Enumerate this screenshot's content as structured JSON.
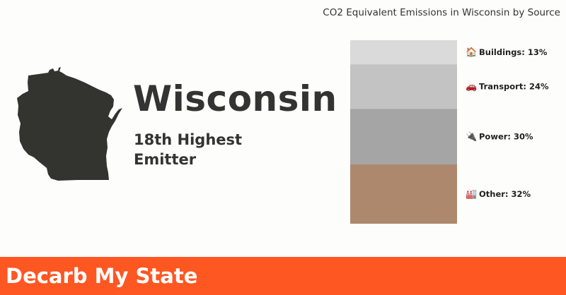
{
  "chart_title": "CO2 Equivalent Emissions in Wisconsin by Source",
  "state": {
    "name": "Wisconsin",
    "rank_line1": "18th Highest",
    "rank_line2": "Emitter",
    "shape_color": "#333330"
  },
  "footer": {
    "label": "Decarb My State",
    "color": "#ff5722"
  },
  "chart_data": {
    "type": "bar",
    "stacked": true,
    "title": "CO2 Equivalent Emissions in Wisconsin by Source",
    "series": [
      {
        "name": "Buildings",
        "icon": "house-icon",
        "glyph": "🏠",
        "value": 13,
        "label": "Buildings: 13%",
        "color": "#dadada"
      },
      {
        "name": "Transport",
        "icon": "car-icon",
        "glyph": "🚗",
        "value": 24,
        "label": "Transport: 24%",
        "color": "#c3c3c3"
      },
      {
        "name": "Power",
        "icon": "plug-icon",
        "glyph": "🔌",
        "value": 30,
        "label": "Power: 30%",
        "color": "#a5a5a5"
      },
      {
        "name": "Other",
        "icon": "factory-icon",
        "glyph": "🏭",
        "value": 32,
        "label": "Other: 32%",
        "color": "#ad886c"
      }
    ]
  }
}
